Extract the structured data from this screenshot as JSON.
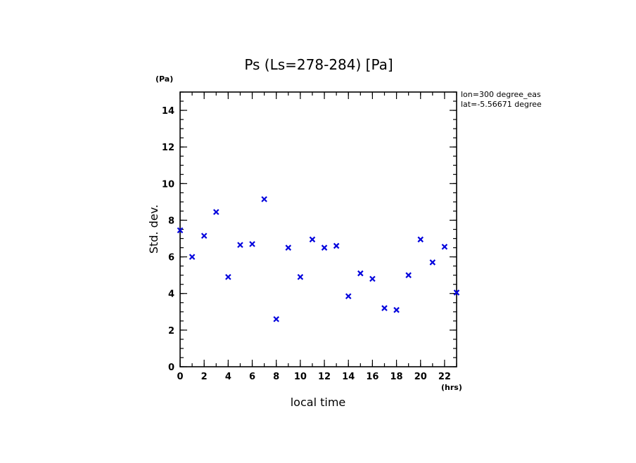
{
  "chart_data": {
    "type": "scatter",
    "title": "Ps (Ls=278-284) [Pa]",
    "xlabel": "local time",
    "ylabel": "Std. dev.",
    "x_unit": "(hrs)",
    "y_unit": "(Pa)",
    "xlim": [
      0,
      23
    ],
    "ylim": [
      0,
      15
    ],
    "x_major_ticks": [
      0,
      2,
      4,
      6,
      8,
      10,
      12,
      14,
      16,
      18,
      20,
      22
    ],
    "x_tick_labels": [
      "0",
      "2",
      "4",
      "6",
      "8",
      "10",
      "12",
      "14",
      "16",
      "18",
      "20",
      "22"
    ],
    "y_major_ticks": [
      0,
      2,
      4,
      6,
      8,
      10,
      12,
      14
    ],
    "y_tick_labels": [
      "0",
      "2",
      "4",
      "6",
      "8",
      "10",
      "12",
      "14"
    ],
    "grid": false,
    "marker": "x",
    "marker_color": "#0000dd",
    "annotations": [
      "lon=300 degree_eas",
      "lat=-5.56671 degree"
    ],
    "x": [
      0,
      1,
      2,
      3,
      4,
      5,
      6,
      7,
      8,
      9,
      10,
      11,
      12,
      13,
      14,
      15,
      16,
      17,
      18,
      19,
      20,
      21,
      22,
      23
    ],
    "values": [
      7.45,
      6.0,
      7.15,
      8.45,
      4.9,
      6.65,
      6.7,
      9.15,
      2.6,
      6.5,
      4.9,
      6.95,
      6.5,
      6.6,
      3.85,
      5.1,
      4.8,
      3.2,
      3.1,
      5.0,
      6.95,
      5.7,
      6.55,
      4.05
    ]
  }
}
